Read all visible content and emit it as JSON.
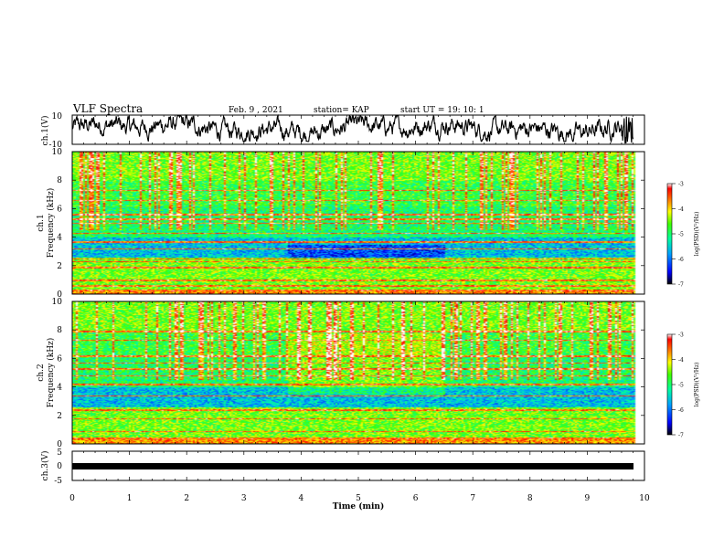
{
  "header": {
    "title": "VLF Spectra",
    "date": "Feb. 9 , 2021",
    "station": "station= KAP",
    "start": "start UT = 19: 10: 1"
  },
  "chart_data": [
    {
      "type": "line",
      "name": "ch1-waveform",
      "ylabel": "ch.1(V)",
      "ylim": [
        -10,
        10
      ],
      "yticks": [
        10,
        -10
      ],
      "xlim": [
        0,
        10
      ],
      "note_values": "noisy waveform roughly between -5 and 8 V"
    },
    {
      "type": "heatmap",
      "name": "ch1-spectrogram",
      "ylabel_line1": "ch.1",
      "ylabel_line2": "Frequency (kHz)",
      "ylim": [
        0,
        10
      ],
      "yticks": [
        0,
        2,
        4,
        6,
        8,
        10
      ],
      "xlim": [
        0,
        10
      ],
      "colorbar": {
        "label": "log(PSD)(V²/Hz)",
        "range": [
          -7,
          -3
        ],
        "ticks": [
          -3,
          -4,
          -5,
          -6,
          -7
        ]
      }
    },
    {
      "type": "heatmap",
      "name": "ch2-spectrogram",
      "ylabel_line1": "ch.2",
      "ylabel_line2": "Frequency (kHz)",
      "ylim": [
        0,
        10
      ],
      "yticks": [
        0,
        2,
        4,
        6,
        8,
        10
      ],
      "xlim": [
        0,
        10
      ],
      "colorbar": {
        "label": "log(PSD)(V²/Hz)",
        "range": [
          -7,
          -3
        ],
        "ticks": [
          -3,
          -4,
          -5,
          -6,
          -7
        ]
      }
    },
    {
      "type": "line",
      "name": "ch3-waveform",
      "ylabel": "ch.3(V)",
      "ylim": [
        -5,
        5
      ],
      "yticks": [
        5,
        0,
        -5
      ],
      "xlim": [
        0,
        10
      ],
      "xlabel": "Time (min)",
      "xticks": [
        0,
        1,
        2,
        3,
        4,
        5,
        6,
        7,
        8,
        9,
        10
      ],
      "note_values": "thick flat signal near 0 V from 0 to ~9.8 min"
    }
  ],
  "colors": {
    "axis": "#000000",
    "background": "#ffffff"
  }
}
